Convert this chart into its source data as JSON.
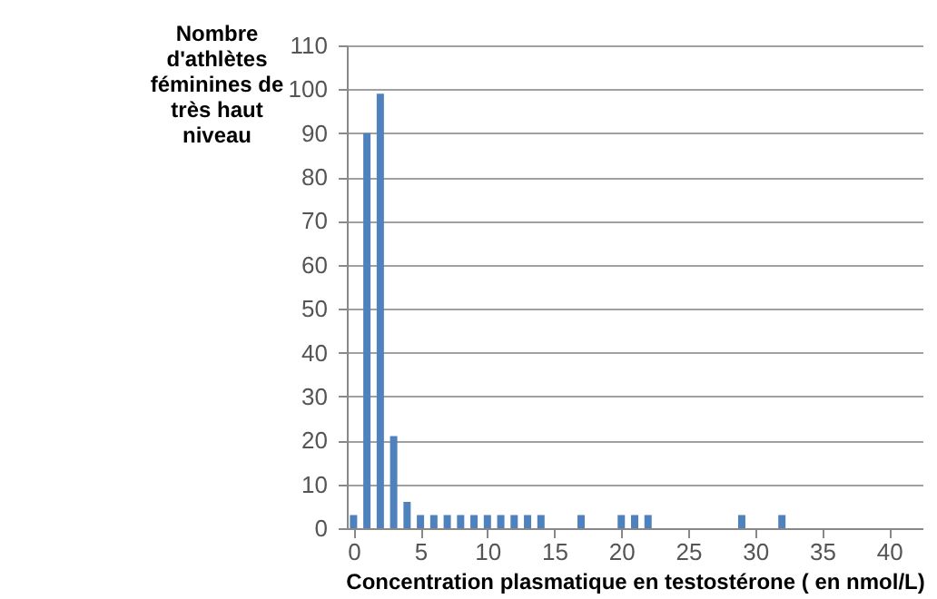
{
  "chart_data": {
    "type": "bar",
    "xlabel": "Concentration plasmatique  en testostérone ( en nmol/L)",
    "ylabel": "Nombre d'athlètes féminines de très haut niveau",
    "x": [
      0,
      1,
      2,
      3,
      4,
      5,
      6,
      7,
      8,
      9,
      10,
      11,
      12,
      13,
      14,
      17,
      20,
      21,
      22,
      29,
      32
    ],
    "series": [
      {
        "color": "#4f81bd",
        "values": [
          3,
          90,
          99,
          21,
          6,
          3,
          3,
          3,
          3,
          3,
          3,
          3,
          3,
          3,
          3,
          3,
          3,
          3,
          3,
          3,
          3
        ]
      }
    ],
    "xlim": [
      -0.5,
      42.5
    ],
    "xticks": [
      0,
      5,
      10,
      15,
      20,
      25,
      30,
      35,
      40
    ],
    "ylim": [
      0,
      110
    ],
    "yticks": [
      0,
      10,
      20,
      30,
      40,
      50,
      60,
      70,
      80,
      90,
      100,
      110
    ],
    "grid": "y"
  }
}
